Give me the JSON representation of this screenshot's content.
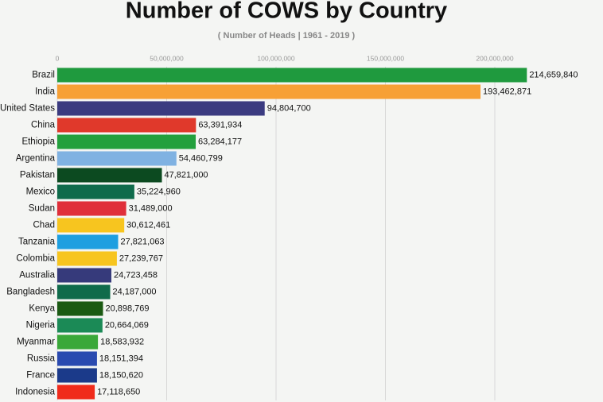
{
  "chart_data": {
    "type": "bar",
    "orientation": "horizontal",
    "title": "Number of COWS by Country",
    "subtitle": "( Number of Heads | 1961 - 2019 )",
    "categories": [
      "Brazil",
      "India",
      "United States",
      "China",
      "Ethiopia",
      "Argentina",
      "Pakistan",
      "Mexico",
      "Sudan",
      "Chad",
      "Tanzania",
      "Colombia",
      "Australia",
      "Bangladesh",
      "Kenya",
      "Nigeria",
      "Myanmar",
      "Russia",
      "France",
      "Indonesia"
    ],
    "values": [
      214659840,
      193462871,
      94804700,
      63391934,
      63284177,
      54460799,
      47821000,
      35224960,
      31489000,
      30612461,
      27821063,
      27239767,
      24723458,
      24187000,
      20898769,
      20664069,
      18583932,
      18151394,
      18150620,
      17118650
    ],
    "value_labels": [
      "214,659,840",
      "193,462,871",
      "94,804,700",
      "63,391,934",
      "63,284,177",
      "54,460,799",
      "47,821,000",
      "35,224,960",
      "31,489,000",
      "30,612,461",
      "27,821,063",
      "27,239,767",
      "24,723,458",
      "24,187,000",
      "20,898,769",
      "20,664,069",
      "18,583,932",
      "18,151,394",
      "18,150,620",
      "17,118,650"
    ],
    "colors": [
      "#1f9a3e",
      "#f7a035",
      "#3b3b80",
      "#e0392b",
      "#23a03d",
      "#80b2e2",
      "#0c4a20",
      "#0f6b4b",
      "#e02f3a",
      "#f7c51f",
      "#1e9fe0",
      "#f7c51f",
      "#363a7b",
      "#0f6b4b",
      "#1b5a13",
      "#1b8a56",
      "#3aa839",
      "#2a4ab0",
      "#1b3a8a",
      "#f02b1b"
    ],
    "xlim": [
      0,
      240000000
    ],
    "xticks": [
      {
        "value": 0,
        "label": "0"
      },
      {
        "value": 50000000,
        "label": "50,000,000"
      },
      {
        "value": 100000000,
        "label": "100,000,000"
      },
      {
        "value": 150000000,
        "label": "150,000,000"
      },
      {
        "value": 200000000,
        "label": "200,000,000"
      }
    ],
    "grid": true
  }
}
